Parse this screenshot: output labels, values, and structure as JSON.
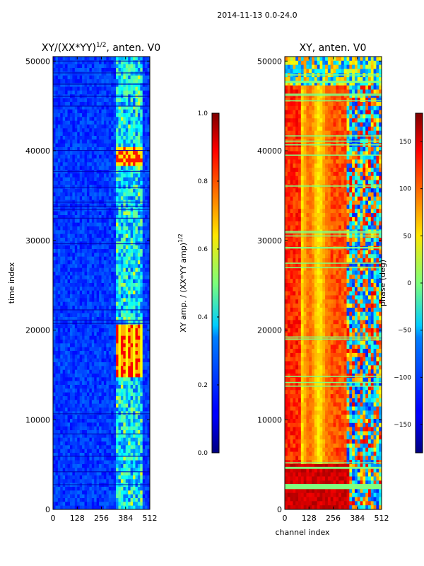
{
  "suptitle": "2014-11-13 0.0-24.0",
  "chart_data": [
    {
      "type": "heatmap",
      "title": "XY/(XX*YY)^1/2, anten. V0",
      "title_base": "XY/(XX*YY)",
      "title_exp": "1/2",
      "title_tail": ", anten. V0",
      "xlabel": "",
      "ylabel": "time index",
      "xlim": [
        0,
        512
      ],
      "ylim": [
        0,
        50500
      ],
      "xticks": [
        0,
        128,
        256,
        384,
        512
      ],
      "yticks": [
        0,
        10000,
        20000,
        30000,
        40000,
        50000
      ],
      "colormap": "jet",
      "colorbar": {
        "label_base": "XY amp. / (XX*YY amp)",
        "label_exp": "1/2",
        "range": [
          0.0,
          1.0
        ],
        "ticks": [
          "0.0",
          "0.2",
          "0.4",
          "0.6",
          "0.8",
          "1.0"
        ]
      }
    },
    {
      "type": "heatmap",
      "title": "XY, anten. V0",
      "xlabel": "channel index",
      "ylabel": "",
      "xlim": [
        0,
        512
      ],
      "ylim": [
        0,
        50500
      ],
      "xticks": [
        0,
        128,
        256,
        384,
        512
      ],
      "yticks": [
        0,
        10000,
        20000,
        30000,
        40000,
        50000
      ],
      "colormap": "jet",
      "colorbar": {
        "label": "phase (deg)",
        "range": [
          -180,
          180
        ],
        "ticks": [
          "−150",
          "−100",
          "−50",
          "0",
          "50",
          "100",
          "150"
        ]
      }
    }
  ]
}
